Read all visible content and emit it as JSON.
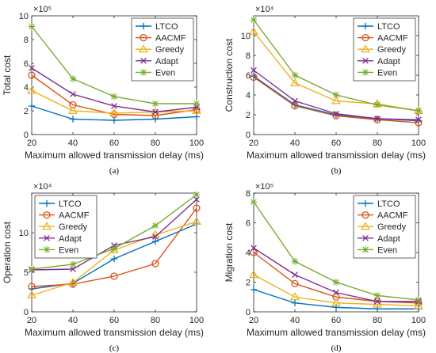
{
  "colors": {
    "LTCO": "#0072BD",
    "AACMF": "#D95319",
    "Greedy": "#EDB120",
    "Adapt": "#7E2F8E",
    "Even": "#77AC30"
  },
  "markers": {
    "LTCO": "plus",
    "AACMF": "circle",
    "Greedy": "triangle",
    "Adapt": "x",
    "Even": "star"
  },
  "chart_data": [
    {
      "type": "line",
      "panel_label": "(a)",
      "xlabel": "Maximum allowed transmission delay (ms)",
      "ylabel": "Total cost",
      "y_exponent": "×10⁵",
      "x": [
        20,
        40,
        60,
        80,
        100
      ],
      "xlim": [
        20,
        100
      ],
      "xticks": [
        20,
        40,
        60,
        80,
        100
      ],
      "ylim": [
        0,
        10
      ],
      "yticks": [
        0,
        2,
        4,
        6,
        8,
        10
      ],
      "grid": false,
      "legend": "top-right",
      "series": [
        {
          "name": "LTCO",
          "values": [
            2.4,
            1.3,
            1.2,
            1.3,
            1.5
          ]
        },
        {
          "name": "AACMF",
          "values": [
            5.0,
            2.5,
            1.7,
            1.6,
            2.1
          ]
        },
        {
          "name": "Greedy",
          "values": [
            3.7,
            2.0,
            1.8,
            1.9,
            2.0
          ]
        },
        {
          "name": "Adapt",
          "values": [
            5.6,
            3.4,
            2.4,
            1.9,
            2.3
          ]
        },
        {
          "name": "Even",
          "values": [
            9.1,
            4.7,
            3.2,
            2.6,
            2.6
          ]
        }
      ]
    },
    {
      "type": "line",
      "panel_label": "(b)",
      "xlabel": "Maximum allowed transmission delay (ms)",
      "ylabel": "Construction cost",
      "y_exponent": "×10⁴",
      "x": [
        20,
        40,
        60,
        80,
        100
      ],
      "xlim": [
        20,
        100
      ],
      "xticks": [
        20,
        40,
        60,
        80,
        100
      ],
      "ylim": [
        0,
        12
      ],
      "yticks": [
        0,
        2,
        4,
        6,
        8,
        10
      ],
      "grid": false,
      "legend": "top-right",
      "series": [
        {
          "name": "LTCO",
          "values": [
            5.9,
            3.0,
            2.0,
            1.6,
            1.4
          ]
        },
        {
          "name": "AACMF",
          "values": [
            5.8,
            2.9,
            1.9,
            1.5,
            1.2
          ]
        },
        {
          "name": "Greedy",
          "values": [
            10.4,
            5.2,
            3.4,
            3.1,
            2.4
          ]
        },
        {
          "name": "Adapt",
          "values": [
            6.5,
            3.4,
            2.1,
            1.6,
            1.5
          ]
        },
        {
          "name": "Even",
          "values": [
            11.6,
            6.0,
            4.0,
            3.0,
            2.4
          ]
        }
      ]
    },
    {
      "type": "line",
      "panel_label": "(c)",
      "xlabel": "Maximum allowed transmission delay (ms)",
      "ylabel": "Operation cost",
      "y_exponent": "×10⁴",
      "x": [
        20,
        40,
        60,
        80,
        100
      ],
      "xlim": [
        20,
        100
      ],
      "xticks": [
        20,
        40,
        60,
        80,
        100
      ],
      "ylim": [
        0,
        15
      ],
      "yticks": [
        0,
        5,
        10
      ],
      "grid": false,
      "legend": "top-left",
      "series": [
        {
          "name": "LTCO",
          "values": [
            2.9,
            3.6,
            6.7,
            8.9,
            11.1
          ]
        },
        {
          "name": "AACMF",
          "values": [
            3.2,
            3.5,
            4.5,
            6.1,
            13.1
          ]
        },
        {
          "name": "Greedy",
          "values": [
            2.1,
            3.7,
            7.8,
            9.7,
            11.4
          ]
        },
        {
          "name": "Adapt",
          "values": [
            5.3,
            5.4,
            8.4,
            9.5,
            14.2
          ]
        },
        {
          "name": "Even",
          "values": [
            5.4,
            6.0,
            8.0,
            10.9,
            14.8
          ]
        }
      ]
    },
    {
      "type": "line",
      "panel_label": "(d)",
      "xlabel": "Maximum allowed transmission delay (ms)",
      "ylabel": "Migration cost",
      "y_exponent": "×10⁵",
      "x": [
        20,
        40,
        60,
        80,
        100
      ],
      "xlim": [
        20,
        100
      ],
      "xticks": [
        20,
        40,
        60,
        80,
        100
      ],
      "ylim": [
        0,
        8
      ],
      "yticks": [
        0,
        2,
        4,
        6,
        8
      ],
      "grid": false,
      "legend": "top-right",
      "series": [
        {
          "name": "LTCO",
          "values": [
            1.5,
            0.6,
            0.3,
            0.2,
            0.2
          ]
        },
        {
          "name": "AACMF",
          "values": [
            4.0,
            1.9,
            1.0,
            0.7,
            0.6
          ]
        },
        {
          "name": "Greedy",
          "values": [
            2.5,
            1.0,
            0.6,
            0.5,
            0.4
          ]
        },
        {
          "name": "Adapt",
          "values": [
            4.3,
            2.5,
            1.3,
            0.7,
            0.7
          ]
        },
        {
          "name": "Even",
          "values": [
            7.4,
            3.4,
            2.0,
            1.1,
            0.8
          ]
        }
      ]
    }
  ]
}
